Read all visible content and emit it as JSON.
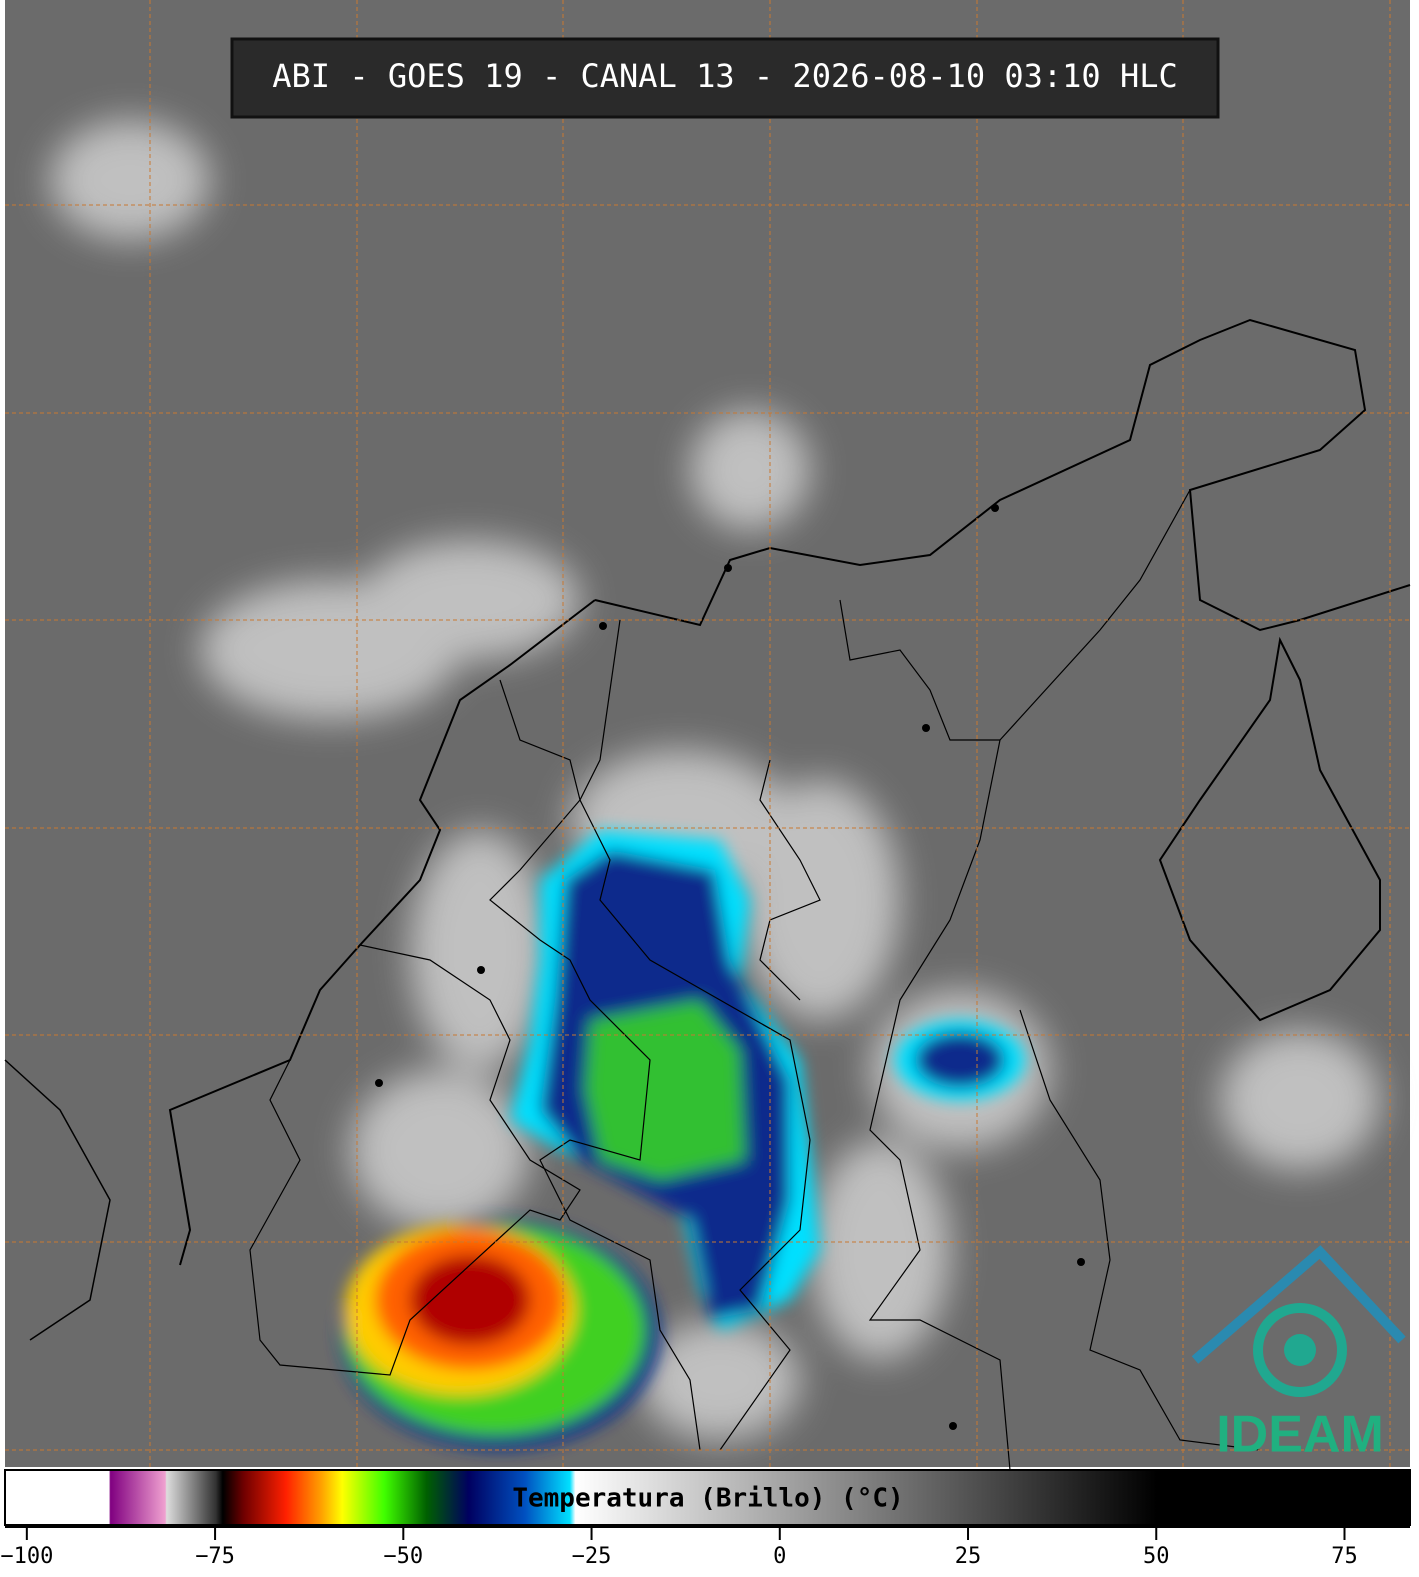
{
  "header": {
    "title": "ABI - GOES 19 - CANAL 13 - 2026-08-10 03:10 HLC"
  },
  "logo": {
    "text": "IDEAM"
  },
  "chart_data": {
    "type": "colorbar",
    "label": "Temperatura (Brillo) (°C)",
    "xlim": [
      -102.9,
      83.7
    ],
    "xticks": [
      {
        "value": -100,
        "label": "−100"
      },
      {
        "value": -75,
        "label": "−75"
      },
      {
        "value": -50,
        "label": "−50"
      },
      {
        "value": -25,
        "label": "−25"
      },
      0,
      25,
      50,
      75
    ]
  }
}
